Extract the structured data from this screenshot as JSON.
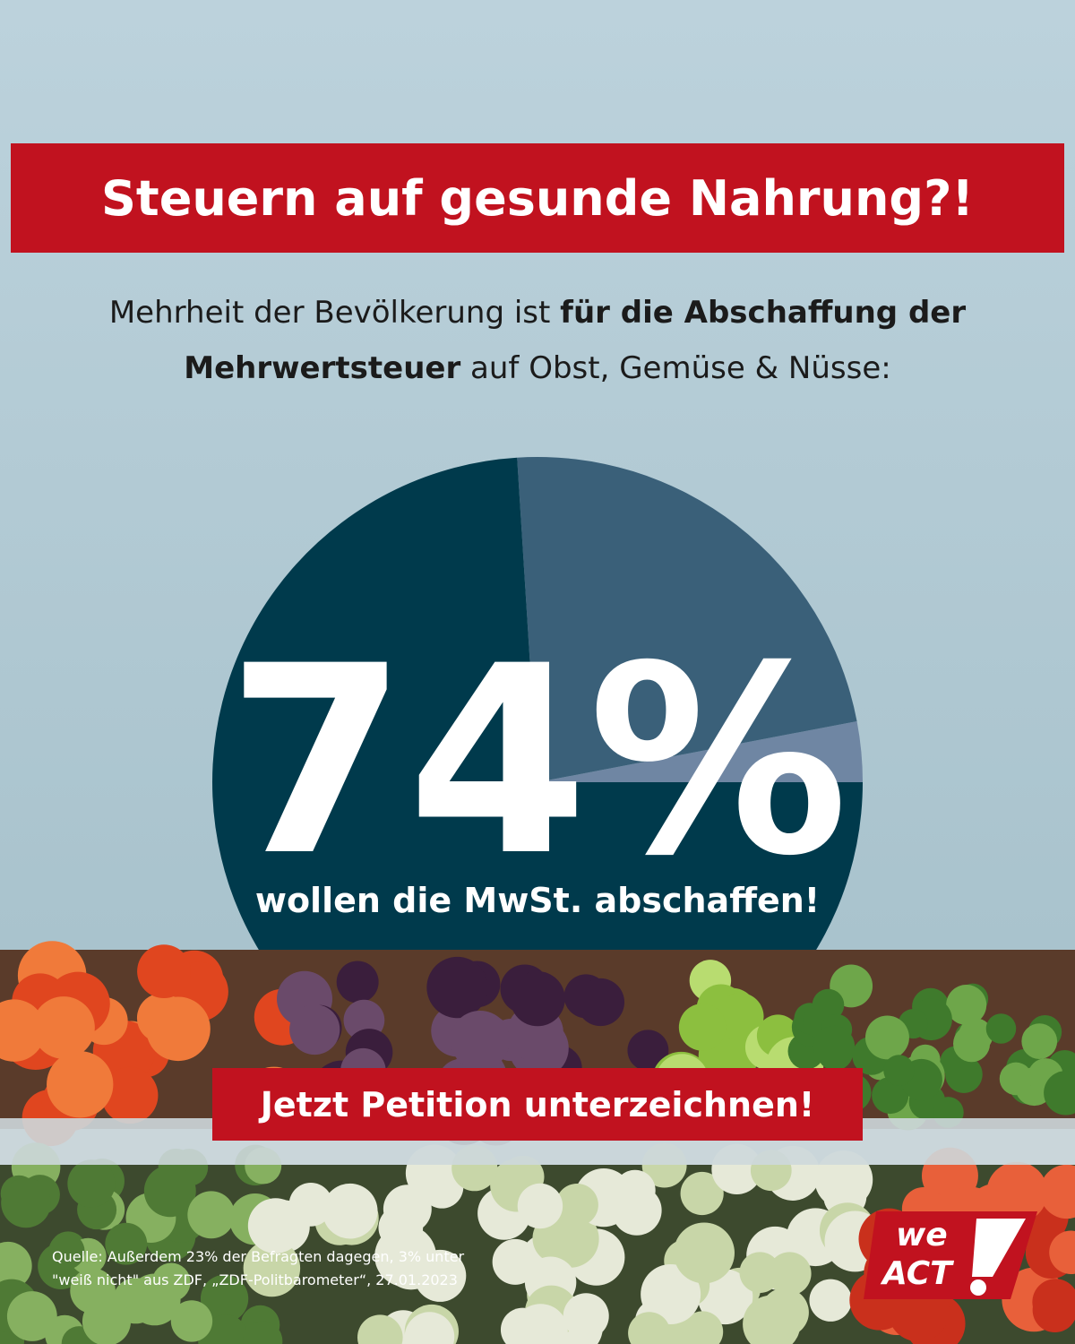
{
  "header": {
    "title": "Steuern auf gesunde Nahrung?!",
    "subtitle_parts": [
      "Mehrheit der Bevölkerung ist",
      "für die Abschaffung der Mehrwertsteuer",
      "auf Obst, Gemüse & Nüsse:"
    ]
  },
  "chart_data": {
    "type": "pie",
    "values": [
      74,
      23,
      3
    ],
    "value_labels": [
      "74%",
      null,
      null
    ],
    "colors": [
      "#003a4c",
      "#3a6079",
      "#6f86a3"
    ],
    "caption": "wollen die MwSt. abschaffen!"
  },
  "button": {
    "label": "Jetzt Petition unterzeichnen!"
  },
  "source": {
    "lines": [
      "Quelle: Außerdem 23% der Befragten dagegen, 3% unter",
      "\"weiß nicht\" aus ZDF, „ZDF-Politbarometer“, 27.01.2023"
    ]
  },
  "logo": {
    "line1": "we",
    "line2": "ACT"
  }
}
